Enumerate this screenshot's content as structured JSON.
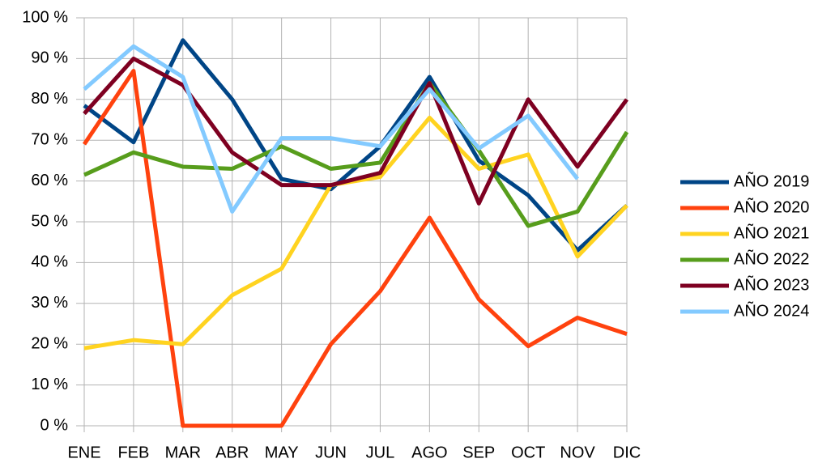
{
  "chart_data": {
    "type": "line",
    "categories": [
      "ENE",
      "FEB",
      "MAR",
      "ABR",
      "MAY",
      "JUN",
      "JUL",
      "AGO",
      "SEP",
      "OCT",
      "NOV",
      "DIC"
    ],
    "series": [
      {
        "name": "AÑO 2019",
        "color": "#004586",
        "values": [
          78.5,
          69.5,
          94.5,
          80,
          60.5,
          58,
          68.5,
          85.5,
          65,
          56.5,
          43,
          54
        ]
      },
      {
        "name": "AÑO 2020",
        "color": "#ff420e",
        "values": [
          69,
          87,
          0,
          0,
          0,
          20,
          33,
          51,
          31,
          19.5,
          26.5,
          22.5
        ]
      },
      {
        "name": "AÑO 2021",
        "color": "#ffd320",
        "values": [
          19,
          21,
          20,
          32,
          38.5,
          59,
          61,
          75.5,
          63,
          66.5,
          41.5,
          54
        ]
      },
      {
        "name": "AÑO 2022",
        "color": "#579d1c",
        "values": [
          61.5,
          67,
          63.5,
          63,
          68.5,
          63,
          64.5,
          84,
          67.5,
          49,
          52.5,
          72
        ]
      },
      {
        "name": "AÑO 2023",
        "color": "#7e0021",
        "values": [
          76.5,
          90,
          83.5,
          67,
          59,
          59,
          62,
          84,
          54.5,
          80,
          63.5,
          80
        ]
      },
      {
        "name": "AÑO 2024",
        "color": "#83caff",
        "values": [
          82.5,
          93,
          85.5,
          52.5,
          70.5,
          70.5,
          68.5,
          82.5,
          68,
          76,
          60.5,
          null
        ]
      }
    ],
    "ylim": [
      0,
      100
    ],
    "yticks": [
      {
        "value": 0,
        "label": "0 %"
      },
      {
        "value": 10,
        "label": "10 %"
      },
      {
        "value": 20,
        "label": "20 %"
      },
      {
        "value": 30,
        "label": "30 %"
      },
      {
        "value": 40,
        "label": "40 %"
      },
      {
        "value": 50,
        "label": "50 %"
      },
      {
        "value": 60,
        "label": "60 %"
      },
      {
        "value": 70,
        "label": "70 %"
      },
      {
        "value": 80,
        "label": "80 %"
      },
      {
        "value": 90,
        "label": "90 %"
      },
      {
        "value": 100,
        "label": "100 %"
      }
    ],
    "grid": true,
    "legend": "right"
  }
}
